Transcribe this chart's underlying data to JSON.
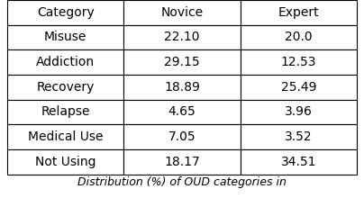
{
  "columns": [
    "Category",
    "Novice",
    "Expert"
  ],
  "rows": [
    [
      "Misuse",
      "22.10",
      "20.0"
    ],
    [
      "Addiction",
      "29.15",
      "12.53"
    ],
    [
      "Recovery",
      "18.89",
      "25.49"
    ],
    [
      "Relapse",
      "4.65",
      "3.96"
    ],
    [
      "Medical Use",
      "7.05",
      "3.52"
    ],
    [
      "Not Using",
      "18.17",
      "34.51"
    ]
  ],
  "caption": "Distribution (%) of OUD categories in",
  "font_size": 10,
  "fig_width": 4.04,
  "fig_height": 2.2,
  "dpi": 100,
  "background_color": "#ffffff",
  "text_color": "#000000",
  "edge_color": "#000000",
  "line_width": 0.8
}
